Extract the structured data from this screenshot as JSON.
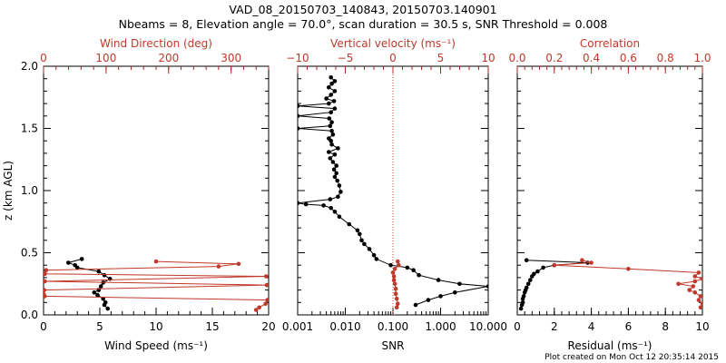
{
  "title_line1": "VAD_08_20150703_140843, 20150703.140901",
  "title_line2": "Nbeams = 8, Elevation angle = 70.0°, scan duration = 30.5 s, SNR Threshold = 0.008",
  "footer": "Plot created on Mon Oct 12 20:35:14 2015",
  "colors": {
    "black": "#000000",
    "red": "#c0392b"
  },
  "chart_data": [
    {
      "type": "line",
      "panel": "left",
      "ylabel": "z (km AGL)",
      "ylim": [
        0,
        2.0
      ],
      "yticks": [
        0.0,
        0.5,
        1.0,
        1.5,
        2.0
      ],
      "ytick_labels": [
        "0.0",
        "0.5",
        "1.0",
        "1.5",
        "2.0"
      ],
      "bottom_axis": {
        "label": "Wind Speed (ms⁻¹)",
        "lim": [
          0,
          20
        ],
        "ticks": [
          0,
          5,
          10,
          15,
          20
        ],
        "tick_labels": [
          "0",
          "5",
          "10",
          "15",
          "20"
        ]
      },
      "top_axis": {
        "label": "Wind Direction (deg)",
        "lim": [
          0,
          360
        ],
        "ticks": [
          0,
          100,
          200,
          300
        ],
        "tick_labels": [
          "0",
          "100",
          "200",
          "300"
        ]
      },
      "series": [
        {
          "name": "Wind Speed",
          "axis": "bottom",
          "color": "#000000",
          "x": [
            5.7,
            5.4,
            5.5,
            5.3,
            4.8,
            4.5,
            4.9,
            5.1,
            5.3,
            5.9,
            5.4,
            4.9,
            3.0,
            2.8,
            2.2,
            3.4
          ],
          "y": [
            0.05,
            0.08,
            0.1,
            0.13,
            0.16,
            0.18,
            0.2,
            0.23,
            0.26,
            0.29,
            0.32,
            0.35,
            0.38,
            0.4,
            0.42,
            0.45
          ]
        },
        {
          "name": "Wind Direction",
          "axis": "top",
          "color": "#c0392b",
          "x": [
            340,
            345,
            355,
            358,
            2,
            0,
            1,
            357,
            2,
            356,
            2,
            4,
            280,
            312,
            180
          ],
          "y": [
            0.04,
            0.06,
            0.09,
            0.12,
            0.15,
            0.17,
            0.2,
            0.24,
            0.27,
            0.31,
            0.33,
            0.36,
            0.39,
            0.41,
            0.43
          ]
        }
      ]
    },
    {
      "type": "line",
      "panel": "middle",
      "ylim": [
        0,
        2.0
      ],
      "bottom_axis": {
        "label": "SNR",
        "scale": "log",
        "lim": [
          0.001,
          10
        ],
        "ticks": [
          0.001,
          0.01,
          0.1,
          1,
          10
        ],
        "tick_labels": [
          "0.001",
          "0.010",
          "0.100",
          "1.000",
          "10.000"
        ]
      },
      "top_axis": {
        "label": "Vertical velocity (ms⁻¹)",
        "lim": [
          -10,
          10
        ],
        "ticks": [
          -10,
          -5,
          0,
          5,
          10
        ],
        "tick_labels": [
          "−10",
          "−5",
          "0",
          "5",
          "10"
        ]
      },
      "reference_line": {
        "axis": "top",
        "x": 0,
        "style": "dotted",
        "color": "#c0392b"
      },
      "series": [
        {
          "name": "SNR",
          "axis": "bottom",
          "color": "#000000",
          "x": [
            0.3,
            0.55,
            1.0,
            2.0,
            10,
            2.5,
            0.9,
            0.35,
            0.27,
            0.2,
            0.09,
            0.045,
            0.04,
            0.032,
            0.025,
            0.022,
            0.02,
            0.018,
            0.012,
            0.0075,
            0.006,
            0.005,
            0.0035,
            0.0015,
            0.001,
            0.0048,
            0.007,
            0.008,
            0.0075,
            0.0068,
            0.006,
            0.0065,
            0.0058,
            0.0065,
            0.0055,
            0.0048,
            0.006,
            0.0045,
            0.007,
            0.0052,
            0.005,
            0.0045,
            0.0055,
            0.0052,
            0.001,
            0.0048,
            0.0052,
            0.0046,
            0.001,
            0.005,
            0.006,
            0.001,
            0.0045,
            0.0058,
            0.004,
            0.005,
            0.006,
            0.0045,
            0.0052,
            0.006,
            0.005
          ],
          "y": [
            0.08,
            0.12,
            0.15,
            0.18,
            0.23,
            0.25,
            0.28,
            0.32,
            0.36,
            0.38,
            0.4,
            0.45,
            0.48,
            0.53,
            0.57,
            0.6,
            0.65,
            0.68,
            0.73,
            0.79,
            0.83,
            0.86,
            0.88,
            0.89,
            0.9,
            0.93,
            0.95,
            0.99,
            1.04,
            1.08,
            1.11,
            1.14,
            1.17,
            1.2,
            1.23,
            1.26,
            1.29,
            1.31,
            1.34,
            1.37,
            1.4,
            1.42,
            1.45,
            1.48,
            1.5,
            1.52,
            1.55,
            1.58,
            1.6,
            1.63,
            1.66,
            1.68,
            1.7,
            1.72,
            1.74,
            1.77,
            1.8,
            1.83,
            1.86,
            1.88,
            1.91
          ]
        },
        {
          "name": "Vertical velocity",
          "axis": "top",
          "color": "#c0392b",
          "x": [
            0.4,
            0.5,
            0.4,
            0.3,
            0.3,
            0.2,
            0.1,
            0.1,
            0.0,
            0.2,
            0.6,
            0.5
          ],
          "y": [
            0.06,
            0.09,
            0.13,
            0.17,
            0.21,
            0.25,
            0.28,
            0.31,
            0.34,
            0.37,
            0.4,
            0.43
          ]
        }
      ]
    },
    {
      "type": "line",
      "panel": "right",
      "ylim": [
        0,
        2.0
      ],
      "bottom_axis": {
        "label": "Residual (ms⁻¹)",
        "lim": [
          0,
          10
        ],
        "ticks": [
          0,
          2,
          4,
          6,
          8,
          10
        ],
        "tick_labels": [
          "0",
          "2",
          "4",
          "6",
          "8",
          "10"
        ]
      },
      "top_axis": {
        "label": "Correlation",
        "lim": [
          0,
          1.0
        ],
        "ticks": [
          0,
          0.2,
          0.4,
          0.6,
          0.8,
          1.0
        ],
        "tick_labels": [
          "0.0",
          "0.2",
          "0.4",
          "0.6",
          "0.8",
          "1.0"
        ]
      },
      "series": [
        {
          "name": "Residual",
          "axis": "bottom",
          "color": "#000000",
          "x": [
            0.2,
            0.25,
            0.3,
            0.3,
            0.35,
            0.4,
            0.45,
            0.5,
            0.6,
            0.7,
            0.8,
            0.9,
            1.1,
            1.4,
            2.0,
            3.8,
            0.5
          ],
          "y": [
            0.05,
            0.08,
            0.1,
            0.13,
            0.15,
            0.18,
            0.2,
            0.22,
            0.25,
            0.28,
            0.31,
            0.33,
            0.35,
            0.38,
            0.4,
            0.42,
            0.44
          ]
        },
        {
          "name": "Correlation",
          "axis": "top",
          "color": "#c0392b",
          "x": [
            0.99,
            1.0,
            0.98,
            0.99,
            0.96,
            0.93,
            0.95,
            0.87,
            0.96,
            1.0,
            0.96,
            0.98,
            0.6,
            0.2,
            0.4,
            0.35
          ],
          "y": [
            0.06,
            0.09,
            0.12,
            0.15,
            0.18,
            0.2,
            0.23,
            0.25,
            0.27,
            0.29,
            0.31,
            0.34,
            0.37,
            0.4,
            0.42,
            0.44
          ]
        }
      ]
    }
  ]
}
